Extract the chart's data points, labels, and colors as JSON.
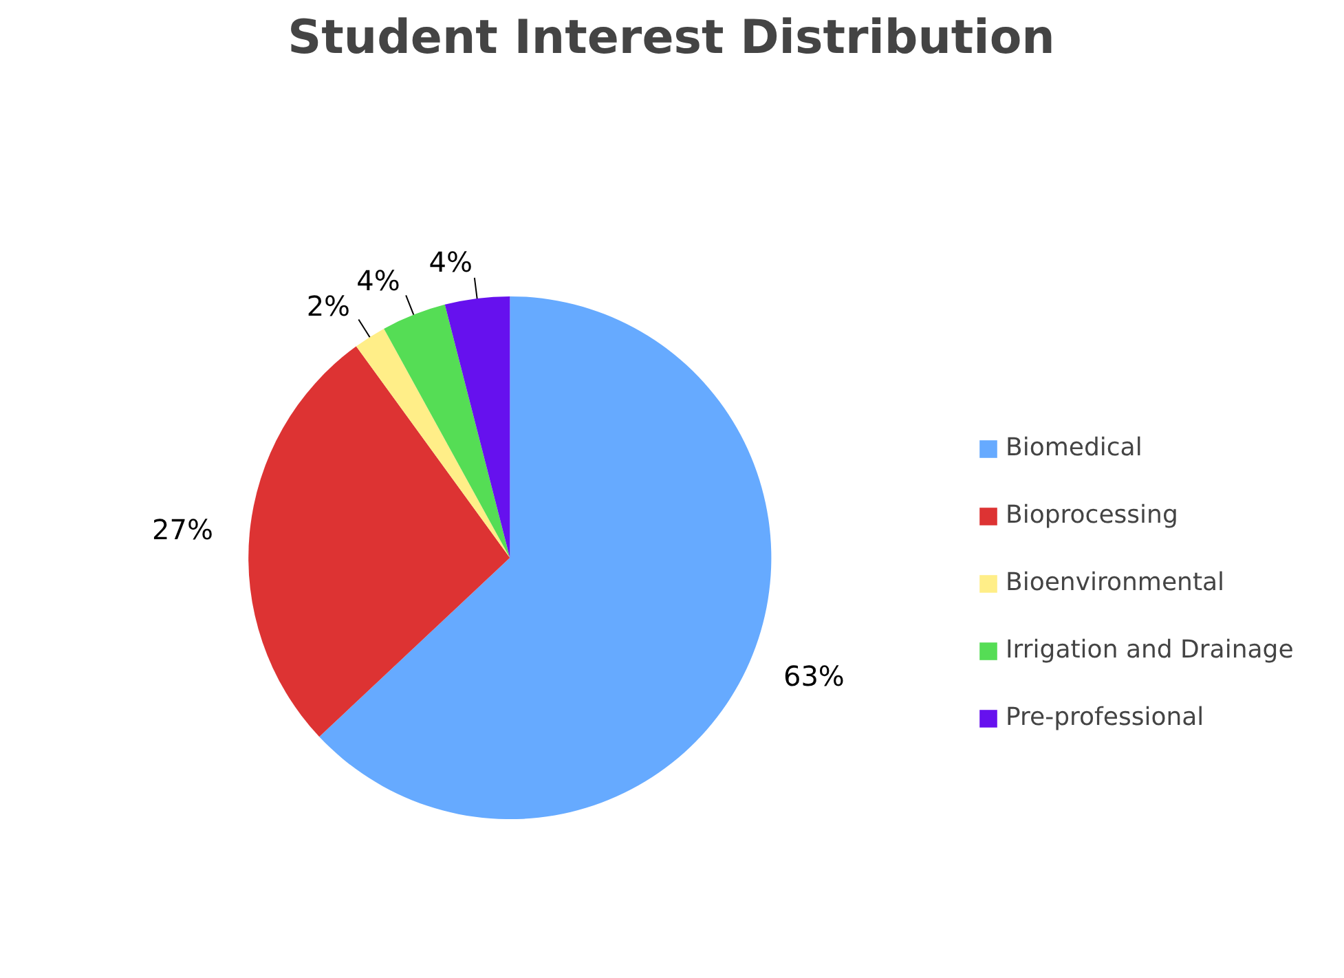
{
  "chart_data": {
    "type": "pie",
    "title": "Student Interest Distribution",
    "categories": [
      "Biomedical",
      "Bioprocessing",
      "Bioenvironmental",
      "Irrigation and Drainage",
      "Pre-professional"
    ],
    "values": [
      63,
      27,
      2,
      4,
      4
    ],
    "colors": [
      "#66aaff",
      "#dd3333",
      "#ffee88",
      "#55dd55",
      "#6611ee"
    ],
    "value_labels": [
      "63%",
      "27%",
      "2%",
      "4%",
      "4%"
    ],
    "legend": "right"
  }
}
